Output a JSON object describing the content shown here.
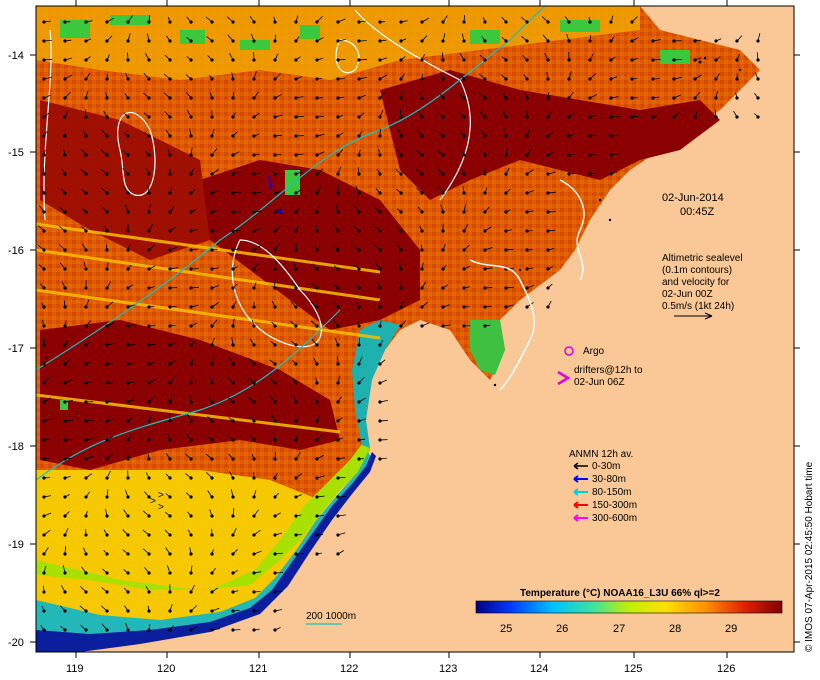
{
  "map": {
    "date_label": "02-Jun-2014",
    "time_label": "00:45Z",
    "altimetry_lines": [
      "Altimetric sealevel",
      "(0.1m contours)",
      "and velocity for",
      "02-Jun 00Z",
      "0.5m/s (1kt 24h)"
    ],
    "argo_label": "Argo",
    "drifters_lines": [
      "drifters@12h to",
      "02-Jun 06Z"
    ],
    "anmn_title": "ANMN 12h av.",
    "anmn_legend": [
      {
        "label": "0-30m",
        "color": "#000000"
      },
      {
        "label": "30-80m",
        "color": "#0000ff"
      },
      {
        "label": "80-150m",
        "color": "#00d0d0"
      },
      {
        "label": "150-300m",
        "color": "#ff0000"
      },
      {
        "label": "300-600m",
        "color": "#ff00ff"
      }
    ],
    "depth_label": "200  1000m",
    "colorbar": {
      "title": "Temperature (°C) NOAA16_L3U 66% ql>=2",
      "ticks": [
        "25",
        "26",
        "27",
        "28",
        "29"
      ]
    },
    "credit": "© IMOS 07-Apr-2015 02:45:50 Hobart time",
    "lat_ticks": [
      "-14",
      "-15",
      "-16",
      "-17",
      "-18",
      "-19",
      "-20"
    ],
    "lon_ticks": [
      "119",
      "120",
      "121",
      "122",
      "123",
      "124",
      "125",
      "126"
    ],
    "colors": {
      "land": "#f9c896",
      "ocean_hot": "#8b0000",
      "ocean_warm": "#d83a00",
      "ocean_mid": "#f08a00",
      "ocean_yellow": "#f5d000",
      "ocean_green": "#3cc83c",
      "ocean_cyan": "#16c2c2",
      "ocean_blue": "#0a1e9e",
      "argo": "#e000e0"
    }
  }
}
